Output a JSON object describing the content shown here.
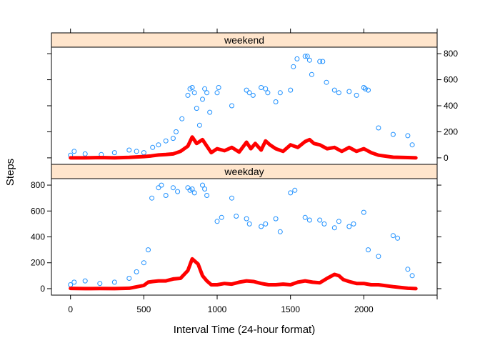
{
  "chart_data": {
    "type": "scatter",
    "xlabel": "Interval Time (24-hour format)",
    "ylabel": "Steps",
    "xlim": [
      -130,
      2500
    ],
    "ylim": [
      -50,
      850
    ],
    "x_ticks": [
      0,
      500,
      1000,
      1500,
      2000
    ],
    "y_ticks": [
      0,
      200,
      400,
      600,
      800
    ],
    "panels": [
      {
        "strip_label": "weekend",
        "series": [
          {
            "type": "scatter",
            "color": "#1E90FF",
            "x": [
              0,
              25,
              100,
              210,
              300,
              400,
              450,
              500,
              560,
              600,
              650,
              700,
              720,
              760,
              800,
              815,
              830,
              845,
              860,
              880,
              900,
              915,
              930,
              950,
              1000,
              1010,
              1100,
              1200,
              1220,
              1245,
              1300,
              1330,
              1345,
              1400,
              1430,
              1500,
              1520,
              1545,
              1600,
              1615,
              1630,
              1645,
              1700,
              1720,
              1745,
              1800,
              1830,
              1900,
              1950,
              2000,
              2010,
              2030,
              2100,
              2200,
              2300,
              2330
            ],
            "y": [
              20,
              50,
              30,
              25,
              40,
              60,
              50,
              40,
              80,
              100,
              130,
              150,
              200,
              300,
              480,
              530,
              540,
              500,
              380,
              250,
              450,
              530,
              500,
              350,
              500,
              540,
              400,
              520,
              500,
              480,
              540,
              530,
              500,
              430,
              500,
              520,
              700,
              760,
              780,
              780,
              750,
              640,
              740,
              740,
              580,
              520,
              500,
              510,
              480,
              540,
              530,
              520,
              230,
              180,
              170,
              100
            ]
          },
          {
            "type": "line",
            "name": "",
            "color": "#FF0000",
            "x": [
              0,
              100,
              200,
              300,
              400,
              500,
              550,
              600,
              650,
              700,
              750,
              800,
              830,
              860,
              900,
              930,
              960,
              1000,
              1050,
              1100,
              1150,
              1200,
              1230,
              1260,
              1300,
              1330,
              1360,
              1400,
              1450,
              1500,
              1550,
              1600,
              1630,
              1660,
              1700,
              1750,
              1800,
              1850,
              1900,
              1950,
              2000,
              2050,
              2100,
              2200,
              2300,
              2355
            ],
            "y": [
              0,
              0,
              2,
              0,
              3,
              10,
              15,
              22,
              25,
              30,
              50,
              90,
              160,
              110,
              140,
              90,
              40,
              70,
              55,
              80,
              45,
              120,
              70,
              110,
              60,
              130,
              100,
              70,
              50,
              100,
              80,
              125,
              140,
              110,
              100,
              70,
              80,
              50,
              80,
              50,
              70,
              40,
              20,
              5,
              2,
              0
            ]
          }
        ]
      },
      {
        "strip_label": "weekday",
        "series": [
          {
            "type": "scatter",
            "color": "#1E90FF",
            "x": [
              0,
              25,
              100,
              200,
              300,
              400,
              450,
              500,
              530,
              555,
              600,
              620,
              650,
              700,
              730,
              800,
              815,
              830,
              845,
              900,
              915,
              930,
              1000,
              1030,
              1100,
              1130,
              1200,
              1220,
              1300,
              1330,
              1400,
              1430,
              1500,
              1530,
              1600,
              1630,
              1700,
              1730,
              1800,
              1830,
              1900,
              1930,
              2000,
              2030,
              2100,
              2200,
              2230,
              2300,
              2330
            ],
            "y": [
              30,
              50,
              60,
              40,
              50,
              80,
              130,
              200,
              300,
              700,
              780,
              800,
              720,
              780,
              750,
              780,
              760,
              770,
              740,
              800,
              770,
              720,
              520,
              550,
              700,
              560,
              540,
              500,
              480,
              500,
              540,
              440,
              740,
              760,
              550,
              530,
              530,
              500,
              470,
              520,
              480,
              500,
              590,
              300,
              250,
              410,
              390,
              150,
              100
            ]
          },
          {
            "type": "line",
            "name": "",
            "color": "#FF0000",
            "x": [
              0,
              100,
              200,
              300,
              400,
              500,
              530,
              560,
              600,
              650,
              700,
              750,
              800,
              830,
              850,
              870,
              900,
              930,
              960,
              1000,
              1050,
              1100,
              1150,
              1200,
              1250,
              1300,
              1350,
              1400,
              1450,
              1500,
              1550,
              1600,
              1650,
              1700,
              1750,
              1800,
              1830,
              1860,
              1900,
              1950,
              2000,
              2050,
              2100,
              2200,
              2300,
              2355
            ],
            "y": [
              2,
              0,
              1,
              0,
              3,
              25,
              50,
              55,
              60,
              60,
              75,
              80,
              140,
              230,
              210,
              190,
              100,
              60,
              30,
              30,
              40,
              35,
              50,
              60,
              55,
              40,
              30,
              30,
              35,
              30,
              50,
              60,
              50,
              45,
              80,
              110,
              100,
              70,
              55,
              40,
              40,
              30,
              30,
              15,
              3,
              0
            ]
          }
        ]
      }
    ]
  }
}
